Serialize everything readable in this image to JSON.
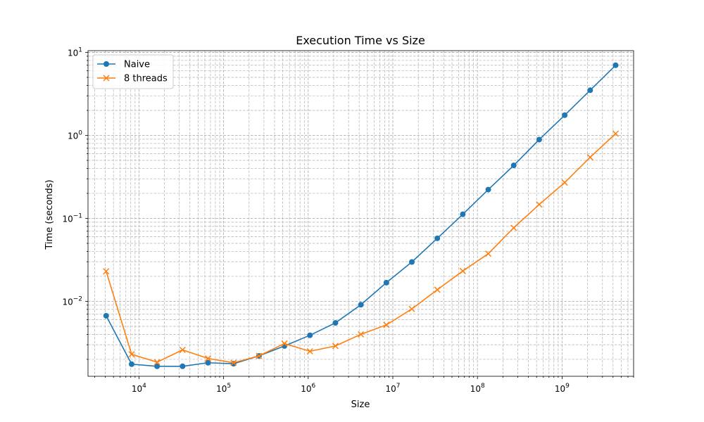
{
  "chart_data": {
    "type": "line",
    "title": "Execution Time vs Size",
    "xlabel": "Size",
    "ylabel": "Time (seconds)",
    "xscale": "log",
    "yscale": "log",
    "xlim": [
      2500,
      7000000000
    ],
    "ylim": [
      0.00125,
      10.5
    ],
    "grid": true,
    "grid_which": "both",
    "legend_position": "top-left",
    "x_tick_labels": [
      {
        "value": 10000,
        "base": "10",
        "exp": "4"
      },
      {
        "value": 100000,
        "base": "10",
        "exp": "5"
      },
      {
        "value": 1000000,
        "base": "10",
        "exp": "6"
      },
      {
        "value": 10000000,
        "base": "10",
        "exp": "7"
      },
      {
        "value": 100000000,
        "base": "10",
        "exp": "8"
      },
      {
        "value": 1000000000,
        "base": "10",
        "exp": "9"
      }
    ],
    "y_tick_labels": [
      {
        "value": 0.01,
        "base": "10",
        "exp": "−2"
      },
      {
        "value": 0.1,
        "base": "10",
        "exp": "−1"
      },
      {
        "value": 1,
        "base": "10",
        "exp": "0"
      },
      {
        "value": 10,
        "base": "10",
        "exp": "1"
      }
    ],
    "x": [
      4096,
      8192,
      16384,
      32768,
      65536,
      131072,
      262144,
      524288,
      1048576,
      2097152,
      4194304,
      8388608,
      16777216,
      33554432,
      67108864,
      134217728,
      268435456,
      536870912,
      1073741824,
      2147483648,
      4294967296
    ],
    "series": [
      {
        "name": "Naive",
        "color": "#1f77b4",
        "marker": "circle",
        "values": [
          0.0067,
          0.00175,
          0.00165,
          0.00165,
          0.00182,
          0.00177,
          0.0022,
          0.0029,
          0.0039,
          0.0055,
          0.0091,
          0.0168,
          0.0298,
          0.0575,
          0.112,
          0.222,
          0.435,
          0.89,
          1.75,
          3.5,
          7.0
        ]
      },
      {
        "name": "8 threads",
        "color": "#ff7f0e",
        "marker": "x",
        "values": [
          0.023,
          0.0023,
          0.00185,
          0.0026,
          0.00205,
          0.00182,
          0.0022,
          0.0031,
          0.0025,
          0.0029,
          0.004,
          0.0052,
          0.0081,
          0.0138,
          0.0232,
          0.0375,
          0.077,
          0.147,
          0.27,
          0.545,
          1.05
        ]
      }
    ]
  }
}
